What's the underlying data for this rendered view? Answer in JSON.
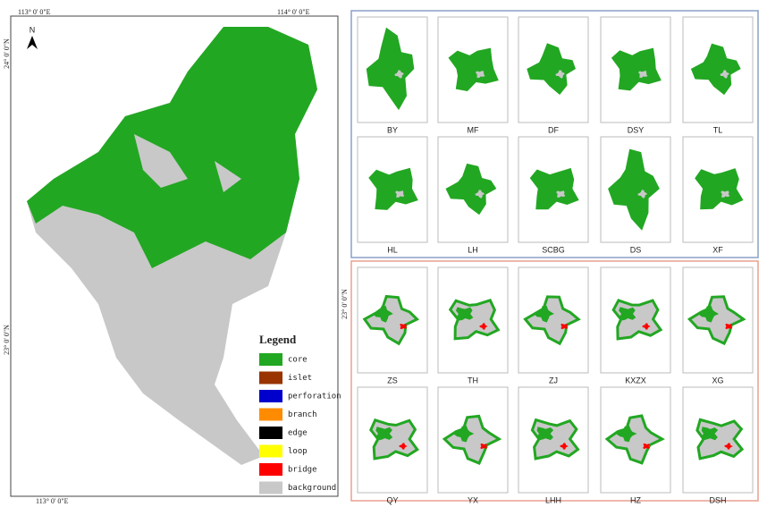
{
  "map": {
    "north": "N",
    "coords": [
      "113° 0' 0\"E",
      "114° 0' 0\"E",
      "24° 0' 0\"N",
      "23° 0' 0\"N",
      "113° 0' 0\"E",
      "23° 0' 0\"N"
    ],
    "legend": {
      "title": "Legend",
      "items": [
        {
          "label": "core",
          "color": "#22a722"
        },
        {
          "label": "islet",
          "color": "#993300"
        },
        {
          "label": "perforation",
          "color": "#0000cc"
        },
        {
          "label": "branch",
          "color": "#ff8c00"
        },
        {
          "label": "edge",
          "color": "#000000"
        },
        {
          "label": "loop",
          "color": "#ffff00"
        },
        {
          "label": "bridge",
          "color": "#ff0000"
        },
        {
          "label": "background",
          "color": "#c8c8c8"
        }
      ]
    }
  },
  "panels": [
    {
      "border": "#8aa0c8",
      "labels": [
        "BY",
        "MF",
        "DF",
        "DSY",
        "TL",
        "HL",
        "LH",
        "SCBG",
        "DS",
        "XF"
      ]
    },
    {
      "border": "#e8a090",
      "labels": [
        "ZS",
        "TH",
        "ZJ",
        "KXZX",
        "XG",
        "QY",
        "YX",
        "LHH",
        "HZ",
        "DSH"
      ]
    }
  ]
}
